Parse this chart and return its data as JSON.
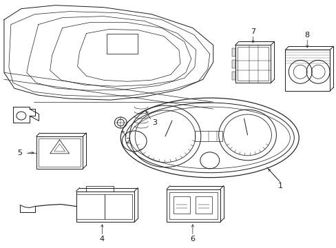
{
  "bg_color": "#ffffff",
  "line_color": "#1a1a1a",
  "lw": 0.7,
  "fig_width": 4.89,
  "fig_height": 3.6,
  "dpi": 100
}
